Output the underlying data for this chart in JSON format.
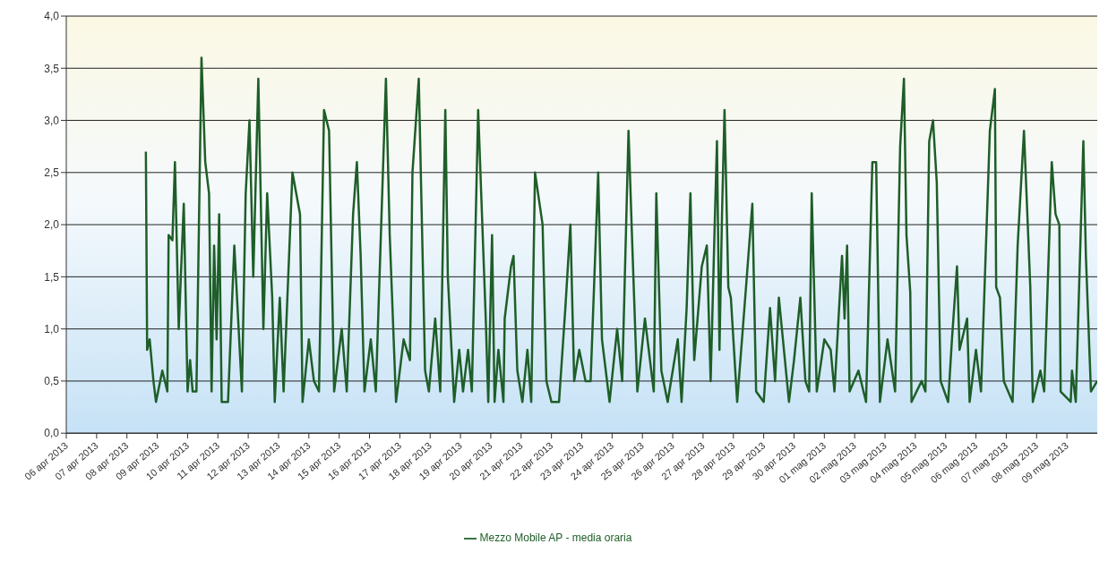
{
  "chart_data": {
    "type": "line",
    "xlim": [
      "2013-04-06",
      "2013-05-10"
    ],
    "xticks": [
      {
        "value": "2013-04-06",
        "label": "06 apr 2013"
      },
      {
        "value": "2013-04-07",
        "label": "07 apr 2013"
      },
      {
        "value": "2013-04-08",
        "label": "08 apr 2013"
      },
      {
        "value": "2013-04-09",
        "label": "09 apr 2013"
      },
      {
        "value": "2013-04-10",
        "label": "10 apr 2013"
      },
      {
        "value": "2013-04-11",
        "label": "11 apr 2013"
      },
      {
        "value": "2013-04-12",
        "label": "12 apr 2013"
      },
      {
        "value": "2013-04-13",
        "label": "13 apr 2013"
      },
      {
        "value": "2013-04-14",
        "label": "14 apr 2013"
      },
      {
        "value": "2013-04-15",
        "label": "15 apr 2013"
      },
      {
        "value": "2013-04-16",
        "label": "16 apr 2013"
      },
      {
        "value": "2013-04-17",
        "label": "17 apr 2013"
      },
      {
        "value": "2013-04-18",
        "label": "18 apr 2013"
      },
      {
        "value": "2013-04-19",
        "label": "19 apr 2013"
      },
      {
        "value": "2013-04-20",
        "label": "20 apr 2013"
      },
      {
        "value": "2013-04-21",
        "label": "21 apr 2013"
      },
      {
        "value": "2013-04-22",
        "label": "22 apr 2013"
      },
      {
        "value": "2013-04-23",
        "label": "23 apr 2013"
      },
      {
        "value": "2013-04-24",
        "label": "24 apr 2013"
      },
      {
        "value": "2013-04-25",
        "label": "25 apr 2013"
      },
      {
        "value": "2013-04-26",
        "label": "26 apr 2013"
      },
      {
        "value": "2013-04-27",
        "label": "27 apr 2013"
      },
      {
        "value": "2013-04-28",
        "label": "28 apr 2013"
      },
      {
        "value": "2013-04-29",
        "label": "29 apr 2013"
      },
      {
        "value": "2013-04-30",
        "label": "30 apr 2013"
      },
      {
        "value": "2013-05-01",
        "label": "01 mag 2013"
      },
      {
        "value": "2013-05-02",
        "label": "02 mag 2013"
      },
      {
        "value": "2013-05-03",
        "label": "03 mag 2013"
      },
      {
        "value": "2013-05-04",
        "label": "04 mag 2013"
      },
      {
        "value": "2013-05-05",
        "label": "05 mag 2013"
      },
      {
        "value": "2013-05-06",
        "label": "06 mag 2013"
      },
      {
        "value": "2013-05-07",
        "label": "07 mag 2013"
      },
      {
        "value": "2013-05-08",
        "label": "08 mag 2013"
      },
      {
        "value": "2013-05-09",
        "label": "09 mag 2013"
      }
    ],
    "ylim": [
      0,
      4
    ],
    "yticks": [
      {
        "value": 0,
        "label": "0,0"
      },
      {
        "value": 0.5,
        "label": "0,5"
      },
      {
        "value": 1,
        "label": "1,0"
      },
      {
        "value": 1.5,
        "label": "1,5"
      },
      {
        "value": 2,
        "label": "2,0"
      },
      {
        "value": 2.5,
        "label": "2,5"
      },
      {
        "value": 3,
        "label": "3,0"
      },
      {
        "value": 3.5,
        "label": "3,5"
      },
      {
        "value": 4,
        "label": "4,0"
      }
    ],
    "grid": "y",
    "legend": "bottom",
    "marker": "none",
    "line_style": "solid",
    "series": [
      {
        "name": "Mezzo Mobile AP - media oraria",
        "color": "#1e5e28",
        "x": [
          "2013-04-08T15:00",
          "2013-04-08T16:00",
          "2013-04-08T18:00",
          "2013-04-08T21:00",
          "2013-04-08T23:00",
          "2013-04-09T04:00",
          "2013-04-09T08:00",
          "2013-04-09T09:00",
          "2013-04-09T12:00",
          "2013-04-09T14:00",
          "2013-04-09T17:00",
          "2013-04-09T21:00",
          "2013-04-10T00:00",
          "2013-04-10T02:00",
          "2013-04-10T04:00",
          "2013-04-10T07:00",
          "2013-04-10T11:00",
          "2013-04-10T14:00",
          "2013-04-10T17:00",
          "2013-04-10T19:00",
          "2013-04-10T21:00",
          "2013-04-10T23:00",
          "2013-04-11T01:00",
          "2013-04-11T03:00",
          "2013-04-11T08:00",
          "2013-04-11T13:00",
          "2013-04-11T19:00",
          "2013-04-11T22:00",
          "2013-04-12T01:00",
          "2013-04-12T04:00",
          "2013-04-12T08:00",
          "2013-04-12T12:00",
          "2013-04-12T15:00",
          "2013-04-12T19:00",
          "2013-04-12T21:00",
          "2013-04-13T01:00",
          "2013-04-13T04:00",
          "2013-04-13T11:00",
          "2013-04-13T17:00",
          "2013-04-13T19:00",
          "2013-04-14T00:00",
          "2013-04-14T04:00",
          "2013-04-14T08:00",
          "2013-04-14T12:00",
          "2013-04-14T16:00",
          "2013-04-14T20:00",
          "2013-04-15T02:00",
          "2013-04-15T06:00",
          "2013-04-15T11:00",
          "2013-04-15T14:00",
          "2013-04-15T17:00",
          "2013-04-15T20:00",
          "2013-04-16T01:00",
          "2013-04-16T05:00",
          "2013-04-16T13:00",
          "2013-04-16T16:00",
          "2013-04-16T21:00",
          "2013-04-17T03:00",
          "2013-04-17T08:00",
          "2013-04-17T10:00",
          "2013-04-17T15:00",
          "2013-04-17T20:00",
          "2013-04-17T23:00",
          "2013-04-18T04:00",
          "2013-04-18T08:00",
          "2013-04-18T12:00",
          "2013-04-18T14:00",
          "2013-04-18T19:00",
          "2013-04-18T23:00",
          "2013-04-19T02:00",
          "2013-04-19T06:00",
          "2013-04-19T09:00",
          "2013-04-19T14:00",
          "2013-04-19T20:00",
          "2013-04-19T22:00",
          "2013-04-20T01:00",
          "2013-04-20T03:00",
          "2013-04-20T06:00",
          "2013-04-20T10:00",
          "2013-04-20T11:00",
          "2013-04-20T16:00",
          "2013-04-20T18:00",
          "2013-04-20T21:00",
          "2013-04-21T01:00",
          "2013-04-21T05:00",
          "2013-04-21T08:00",
          "2013-04-21T11:00",
          "2013-04-21T17:00",
          "2013-04-21T20:00",
          "2013-04-22T00:00",
          "2013-04-22T06:00",
          "2013-04-22T11:00",
          "2013-04-22T15:00",
          "2013-04-22T18:00",
          "2013-04-22T22:00",
          "2013-04-23T03:00",
          "2013-04-23T07:00",
          "2013-04-23T13:00",
          "2013-04-23T16:00",
          "2013-04-23T22:00",
          "2013-04-24T04:00",
          "2013-04-24T08:00",
          "2013-04-24T13:00",
          "2013-04-24T16:00",
          "2013-04-24T20:00",
          "2013-04-25T02:00",
          "2013-04-25T09:00",
          "2013-04-25T11:00",
          "2013-04-25T15:00",
          "2013-04-25T20:00",
          "2013-04-26T04:00",
          "2013-04-26T07:00",
          "2013-04-26T11:00",
          "2013-04-26T14:00",
          "2013-04-26T17:00",
          "2013-04-26T23:00",
          "2013-04-27T03:00",
          "2013-04-27T06:00",
          "2013-04-27T09:00",
          "2013-04-27T11:00",
          "2013-04-27T13:00",
          "2013-04-27T15:00",
          "2013-04-27T17:00",
          "2013-04-27T20:00",
          "2013-04-27T22:00",
          "2013-04-28T03:00",
          "2013-04-28T10:00",
          "2013-04-28T15:00",
          "2013-04-28T18:00",
          "2013-04-29T00:00",
          "2013-04-29T05:00",
          "2013-04-29T09:00",
          "2013-04-29T12:00",
          "2013-04-29T20:00",
          "2013-04-30T00:00",
          "2013-04-30T05:00",
          "2013-04-30T09:00",
          "2013-04-30T12:00",
          "2013-04-30T14:00",
          "2013-04-30T18:00",
          "2013-05-01T00:00",
          "2013-05-01T05:00",
          "2013-05-01T08:00",
          "2013-05-01T14:00",
          "2013-05-01T16:00",
          "2013-05-01T18:00",
          "2013-05-01T20:00",
          "2013-05-02T03:00",
          "2013-05-02T09:00",
          "2013-05-02T14:00",
          "2013-05-02T17:00",
          "2013-05-02T20:00",
          "2013-05-03T02:00",
          "2013-05-03T08:00",
          "2013-05-03T12:00",
          "2013-05-03T15:00",
          "2013-05-03T17:00",
          "2013-05-03T20:00",
          "2013-05-03T21:00",
          "2013-05-04T05:00",
          "2013-05-04T08:00",
          "2013-05-04T11:00",
          "2013-05-04T14:00",
          "2013-05-04T17:00",
          "2013-05-04T20:00",
          "2013-05-05T02:00",
          "2013-05-05T05:00",
          "2013-05-05T09:00",
          "2013-05-05T11:00",
          "2013-05-05T17:00",
          "2013-05-05T19:00",
          "2013-05-06T00:00",
          "2013-05-06T04:00",
          "2013-05-06T11:00",
          "2013-05-06T15:00",
          "2013-05-06T16:00",
          "2013-05-06T19:00",
          "2013-05-06T22:00",
          "2013-05-07T05:00",
          "2013-05-07T09:00",
          "2013-05-07T14:00",
          "2013-05-07T19:00",
          "2013-05-07T21:00",
          "2013-05-08T03:00",
          "2013-05-08T06:00",
          "2013-05-08T12:00",
          "2013-05-08T15:00",
          "2013-05-08T18:00",
          "2013-05-08T19:00",
          "2013-05-09T03:00",
          "2013-05-09T04:00",
          "2013-05-09T07:00",
          "2013-05-09T13:00",
          "2013-05-09T15:00",
          "2013-05-09T19:00",
          "2013-05-10T00:00"
        ],
        "values": [
          2.7,
          0.8,
          0.9,
          0.5,
          0.3,
          0.6,
          0.4,
          1.9,
          1.85,
          2.6,
          1.0,
          2.2,
          0.4,
          0.7,
          0.4,
          0.4,
          3.6,
          2.6,
          2.3,
          0.4,
          1.8,
          0.9,
          2.1,
          0.3,
          0.3,
          1.8,
          0.4,
          2.3,
          3.0,
          1.5,
          3.4,
          1.0,
          2.3,
          1.3,
          0.3,
          1.3,
          0.4,
          2.5,
          2.1,
          0.3,
          0.9,
          0.5,
          0.4,
          3.1,
          2.9,
          0.4,
          1.0,
          0.4,
          2.1,
          2.6,
          1.7,
          0.4,
          0.9,
          0.4,
          3.4,
          1.9,
          0.3,
          0.9,
          0.7,
          2.5,
          3.4,
          0.6,
          0.4,
          1.1,
          0.4,
          3.1,
          1.5,
          0.3,
          0.8,
          0.4,
          0.8,
          0.4,
          3.1,
          1.1,
          0.3,
          1.9,
          0.3,
          0.8,
          0.3,
          1.1,
          1.6,
          1.7,
          0.6,
          0.3,
          0.8,
          0.3,
          2.5,
          2.0,
          0.5,
          0.3,
          0.3,
          1.2,
          2.0,
          0.5,
          0.8,
          0.5,
          0.5,
          2.5,
          0.9,
          0.3,
          1.0,
          0.5,
          2.9,
          1.8,
          0.4,
          1.1,
          0.4,
          2.3,
          0.6,
          0.3,
          0.9,
          0.3,
          1.2,
          2.3,
          0.7,
          1.6,
          1.8,
          0.5,
          1.9,
          2.8,
          0.8,
          2.1,
          3.1,
          1.4,
          1.3,
          0.3,
          1.4,
          2.2,
          0.4,
          0.3,
          1.2,
          0.5,
          1.3,
          0.3,
          0.7,
          1.3,
          0.5,
          0.4,
          2.3,
          0.4,
          0.9,
          0.8,
          0.4,
          1.7,
          1.1,
          1.8,
          0.4,
          0.6,
          0.3,
          2.6,
          2.6,
          0.3,
          0.9,
          0.4,
          2.75,
          3.4,
          1.9,
          1.35,
          0.3,
          0.5,
          0.4,
          2.8,
          3.0,
          2.4,
          0.5,
          0.3,
          0.9,
          1.6,
          0.8,
          1.1,
          0.3,
          0.8,
          0.4,
          2.9,
          3.3,
          1.4,
          1.3,
          0.5,
          0.3,
          1.8,
          2.9,
          1.4,
          0.3,
          0.6,
          0.4,
          2.6,
          2.1,
          2.0,
          0.4,
          0.3,
          0.6,
          0.3,
          2.8,
          1.7,
          0.4,
          0.5
        ]
      }
    ]
  }
}
